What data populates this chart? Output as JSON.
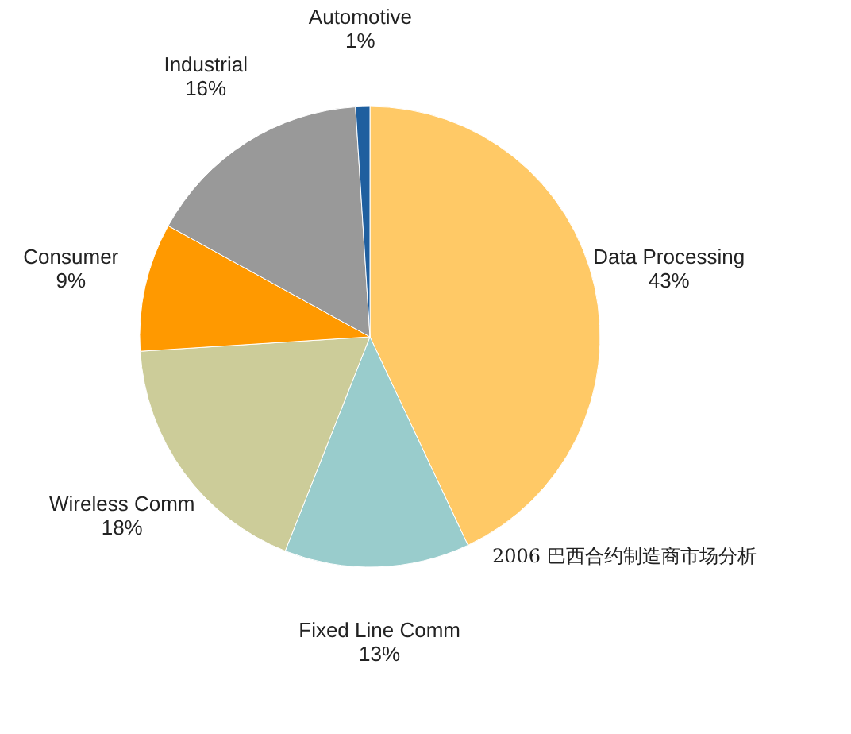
{
  "chart_data": {
    "type": "pie",
    "categories": [
      "Data Processing",
      "Fixed Line Comm",
      "Wireless Comm",
      "Consumer",
      "Industrial",
      "Automotive"
    ],
    "values": [
      43,
      13,
      18,
      9,
      16,
      1
    ],
    "value_labels": [
      "43%",
      "13%",
      "18%",
      "9%",
      "16%",
      "1%"
    ],
    "colors": [
      "#ffc966",
      "#99cccc",
      "#cccc99",
      "#ff9900",
      "#999999",
      "#1f5f9f"
    ],
    "annotations": [
      "2006 巴西合约制造商市场分析"
    ]
  }
}
